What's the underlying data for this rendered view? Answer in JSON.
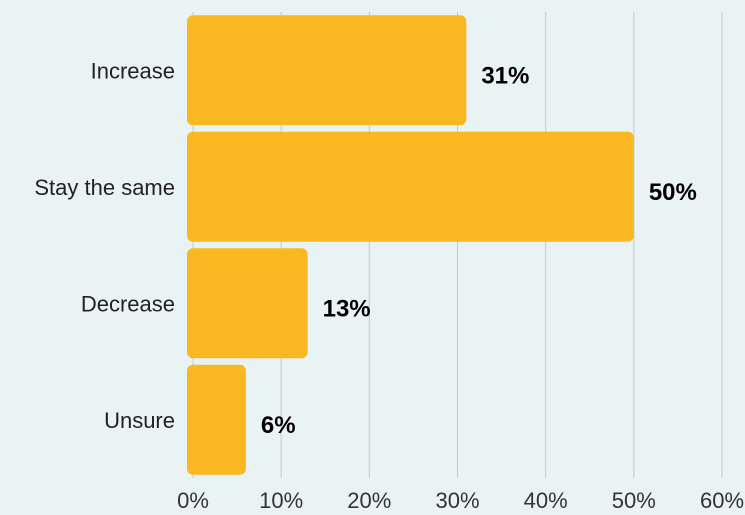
{
  "chart_data": {
    "type": "bar",
    "orientation": "horizontal",
    "categories": [
      "Increase",
      "Stay the same",
      "Decrease",
      "Unsure"
    ],
    "values": [
      31,
      50,
      13,
      6
    ],
    "value_labels": [
      "31%",
      "50%",
      "13%",
      "6%"
    ],
    "xlim": [
      0,
      60
    ],
    "xticks": [
      0,
      10,
      20,
      30,
      40,
      50,
      60
    ],
    "xtick_labels": [
      "0%",
      "10%",
      "20%",
      "30%",
      "40%",
      "50%",
      "60%"
    ],
    "grid": "vertical",
    "colors": {
      "bar": "#f9b822",
      "background": "#e9f3f3",
      "grid": "#c3c9c9"
    }
  }
}
